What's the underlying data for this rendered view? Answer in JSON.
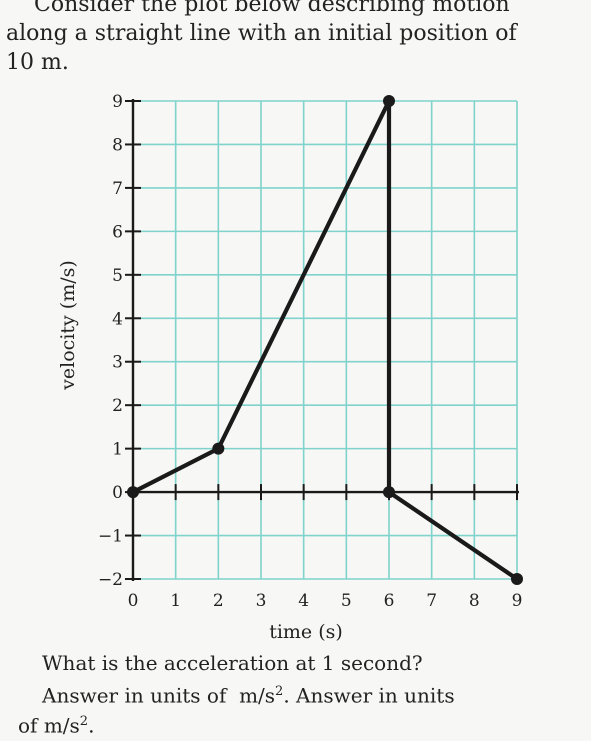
{
  "problem": {
    "intro_line1": "Consider the plot below describing motion",
    "intro_line2": "along a straight line with an initial position of",
    "intro_line3": "10 m.",
    "question": "What is the acceleration at 1 second?",
    "answer_part1": "Answer in units of",
    "answer_unit1": "m/s",
    "answer_part2": ". Answer in units",
    "answer_part3": "of",
    "answer_unit2": "m/s",
    "answer_end": ".",
    "exponent": "2"
  },
  "chart_data": {
    "type": "line",
    "xlabel": "time (s)",
    "ylabel": "velocity (m/s)",
    "xlim": [
      0,
      9
    ],
    "ylim": [
      -2,
      9
    ],
    "xticks": [
      0,
      1,
      2,
      3,
      4,
      5,
      6,
      7,
      8,
      9
    ],
    "yticks": [
      -2,
      -1,
      0,
      1,
      2,
      3,
      4,
      5,
      6,
      7,
      8,
      9
    ],
    "grid": true,
    "grid_color": "#7fd3cc",
    "line_color": "#1a1a1a",
    "series": [
      {
        "points": [
          [
            0,
            0
          ],
          [
            2,
            1
          ],
          [
            6,
            9
          ],
          [
            6,
            0
          ],
          [
            9,
            -2
          ]
        ],
        "markers": [
          [
            0,
            0
          ],
          [
            2,
            1
          ],
          [
            6,
            9
          ],
          [
            6,
            0
          ],
          [
            9,
            -2
          ]
        ]
      }
    ]
  }
}
